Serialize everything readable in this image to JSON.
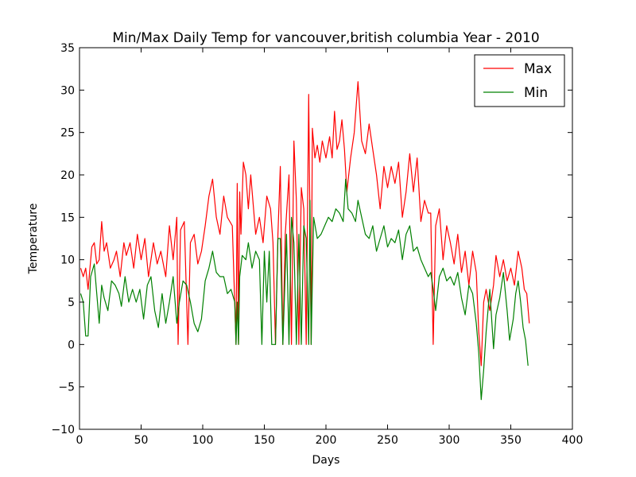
{
  "chart_data": {
    "type": "line",
    "title": "Min/Max Daily Temp for vancouver,british columbia Year - 2010",
    "xlabel": "Days",
    "ylabel": "Temperature",
    "xlim": [
      0,
      400
    ],
    "ylim": [
      -10,
      35
    ],
    "xticks": [
      0,
      50,
      100,
      150,
      200,
      250,
      300,
      350,
      400
    ],
    "yticks": [
      -10,
      -5,
      0,
      5,
      10,
      15,
      20,
      25,
      30,
      35
    ],
    "grid": false,
    "legend_position": "top-right",
    "series": [
      {
        "name": "Max",
        "color": "#ff0000",
        "points": [
          [
            1,
            9
          ],
          [
            3,
            8
          ],
          [
            5,
            9
          ],
          [
            7,
            6.5
          ],
          [
            10,
            11.5
          ],
          [
            12,
            12
          ],
          [
            14,
            9.5
          ],
          [
            16,
            10
          ],
          [
            18,
            14.5
          ],
          [
            20,
            11
          ],
          [
            22,
            12
          ],
          [
            25,
            9
          ],
          [
            28,
            10
          ],
          [
            30,
            11
          ],
          [
            33,
            8
          ],
          [
            36,
            12
          ],
          [
            38,
            10.5
          ],
          [
            41,
            12
          ],
          [
            44,
            9
          ],
          [
            47,
            13
          ],
          [
            50,
            10
          ],
          [
            53,
            12.5
          ],
          [
            56,
            8
          ],
          [
            60,
            12
          ],
          [
            63,
            9.5
          ],
          [
            66,
            11
          ],
          [
            70,
            8
          ],
          [
            73,
            14
          ],
          [
            76,
            10
          ],
          [
            79,
            15
          ],
          [
            80,
            0
          ],
          [
            82,
            13.5
          ],
          [
            85,
            14.5
          ],
          [
            88,
            0
          ],
          [
            90,
            12
          ],
          [
            93,
            13
          ],
          [
            96,
            9.5
          ],
          [
            99,
            11
          ],
          [
            102,
            14
          ],
          [
            105,
            17.5
          ],
          [
            108,
            19.5
          ],
          [
            111,
            15
          ],
          [
            114,
            13
          ],
          [
            117,
            17.5
          ],
          [
            120,
            15
          ],
          [
            124,
            14
          ],
          [
            127,
            0
          ],
          [
            128,
            19
          ],
          [
            129,
            0
          ],
          [
            130,
            18
          ],
          [
            131,
            13
          ],
          [
            133,
            21.5
          ],
          [
            135,
            20
          ],
          [
            137,
            16
          ],
          [
            139,
            20
          ],
          [
            141,
            16.5
          ],
          [
            143,
            13
          ],
          [
            146,
            15
          ],
          [
            149,
            12
          ],
          [
            152,
            17.5
          ],
          [
            155,
            16
          ],
          [
            157,
            12
          ],
          [
            159,
            0
          ],
          [
            161,
            13
          ],
          [
            163,
            21
          ],
          [
            165,
            0
          ],
          [
            167,
            13
          ],
          [
            170,
            20
          ],
          [
            172,
            0
          ],
          [
            174,
            24
          ],
          [
            176,
            17
          ],
          [
            178,
            0
          ],
          [
            180,
            18.5
          ],
          [
            182,
            16
          ],
          [
            184,
            0
          ],
          [
            186,
            29.5
          ],
          [
            188,
            0
          ],
          [
            189,
            25.5
          ],
          [
            191,
            22
          ],
          [
            193,
            23.5
          ],
          [
            195,
            21.5
          ],
          [
            197,
            24
          ],
          [
            200,
            22
          ],
          [
            203,
            24.5
          ],
          [
            205,
            22
          ],
          [
            207,
            27.5
          ],
          [
            209,
            23
          ],
          [
            211,
            24
          ],
          [
            213,
            26.5
          ],
          [
            215,
            23
          ],
          [
            217,
            18
          ],
          [
            220,
            22
          ],
          [
            223,
            25
          ],
          [
            226,
            31
          ],
          [
            229,
            24
          ],
          [
            232,
            22.5
          ],
          [
            235,
            26
          ],
          [
            238,
            23
          ],
          [
            241,
            20
          ],
          [
            244,
            16
          ],
          [
            247,
            21
          ],
          [
            250,
            18.5
          ],
          [
            253,
            21
          ],
          [
            256,
            19
          ],
          [
            259,
            21.5
          ],
          [
            262,
            15
          ],
          [
            265,
            18
          ],
          [
            268,
            22.5
          ],
          [
            271,
            18
          ],
          [
            274,
            22
          ],
          [
            277,
            14.5
          ],
          [
            280,
            17
          ],
          [
            283,
            15.5
          ],
          [
            285,
            15.5
          ],
          [
            287,
            0
          ],
          [
            289,
            14
          ],
          [
            292,
            16
          ],
          [
            295,
            10
          ],
          [
            298,
            14
          ],
          [
            301,
            12
          ],
          [
            304,
            9.5
          ],
          [
            307,
            13
          ],
          [
            310,
            8.5
          ],
          [
            313,
            11
          ],
          [
            316,
            7
          ],
          [
            319,
            11
          ],
          [
            322,
            8.5
          ],
          [
            324,
            1.5
          ],
          [
            326,
            -2.5
          ],
          [
            328,
            5
          ],
          [
            330,
            6.5
          ],
          [
            333,
            4
          ],
          [
            336,
            7
          ],
          [
            338,
            10.5
          ],
          [
            341,
            8
          ],
          [
            344,
            10
          ],
          [
            347,
            7.5
          ],
          [
            350,
            9
          ],
          [
            353,
            7
          ],
          [
            356,
            11
          ],
          [
            359,
            9
          ],
          [
            361,
            6.5
          ],
          [
            363,
            6
          ],
          [
            365,
            2.5
          ]
        ]
      },
      {
        "name": "Min",
        "color": "#008000",
        "points": [
          [
            1,
            6
          ],
          [
            3,
            5
          ],
          [
            5,
            1
          ],
          [
            7,
            1
          ],
          [
            9,
            8
          ],
          [
            12,
            9.5
          ],
          [
            14,
            6
          ],
          [
            16,
            2.5
          ],
          [
            18,
            7
          ],
          [
            20,
            5.5
          ],
          [
            23,
            4
          ],
          [
            26,
            7.5
          ],
          [
            29,
            7
          ],
          [
            32,
            6
          ],
          [
            34,
            4.5
          ],
          [
            37,
            8
          ],
          [
            40,
            5
          ],
          [
            43,
            6.5
          ],
          [
            46,
            5
          ],
          [
            49,
            6.5
          ],
          [
            52,
            3
          ],
          [
            55,
            7
          ],
          [
            58,
            8
          ],
          [
            61,
            4
          ],
          [
            64,
            2
          ],
          [
            67,
            6
          ],
          [
            70,
            2.5
          ],
          [
            73,
            5
          ],
          [
            76,
            8
          ],
          [
            79,
            2.5
          ],
          [
            81,
            5
          ],
          [
            84,
            7.5
          ],
          [
            87,
            7
          ],
          [
            90,
            5
          ],
          [
            93,
            2.5
          ],
          [
            96,
            1.5
          ],
          [
            99,
            3
          ],
          [
            102,
            7.5
          ],
          [
            105,
            9
          ],
          [
            108,
            11
          ],
          [
            111,
            8.5
          ],
          [
            114,
            8
          ],
          [
            117,
            8
          ],
          [
            120,
            6
          ],
          [
            123,
            6.5
          ],
          [
            126,
            5
          ],
          [
            127,
            0
          ],
          [
            128,
            5
          ],
          [
            129,
            0
          ],
          [
            130,
            8
          ],
          [
            132,
            10.5
          ],
          [
            135,
            10
          ],
          [
            137,
            12
          ],
          [
            140,
            9
          ],
          [
            143,
            11
          ],
          [
            146,
            10
          ],
          [
            148,
            0
          ],
          [
            150,
            11
          ],
          [
            152,
            5
          ],
          [
            154,
            11
          ],
          [
            156,
            0
          ],
          [
            159,
            0
          ],
          [
            161,
            12.5
          ],
          [
            163,
            12.5
          ],
          [
            165,
            0
          ],
          [
            168,
            13
          ],
          [
            170,
            0
          ],
          [
            172,
            15
          ],
          [
            174,
            12
          ],
          [
            176,
            0
          ],
          [
            178,
            13
          ],
          [
            180,
            0
          ],
          [
            182,
            14
          ],
          [
            184,
            12.5
          ],
          [
            186,
            0
          ],
          [
            187,
            17
          ],
          [
            188,
            0
          ],
          [
            190,
            15
          ],
          [
            193,
            12.5
          ],
          [
            196,
            13
          ],
          [
            199,
            14
          ],
          [
            202,
            15
          ],
          [
            205,
            14.5
          ],
          [
            208,
            16
          ],
          [
            211,
            15.5
          ],
          [
            214,
            14.5
          ],
          [
            216,
            19.5
          ],
          [
            218,
            16
          ],
          [
            221,
            15.5
          ],
          [
            224,
            14.5
          ],
          [
            226,
            17
          ],
          [
            229,
            15
          ],
          [
            232,
            13
          ],
          [
            235,
            12.5
          ],
          [
            238,
            14
          ],
          [
            241,
            11
          ],
          [
            244,
            12.5
          ],
          [
            247,
            14
          ],
          [
            250,
            11.5
          ],
          [
            253,
            12.5
          ],
          [
            256,
            12
          ],
          [
            259,
            13.5
          ],
          [
            262,
            10
          ],
          [
            265,
            13
          ],
          [
            268,
            14
          ],
          [
            271,
            11
          ],
          [
            274,
            11.5
          ],
          [
            277,
            10
          ],
          [
            280,
            9
          ],
          [
            283,
            8
          ],
          [
            285,
            8.5
          ],
          [
            287,
            6.5
          ],
          [
            289,
            4
          ],
          [
            292,
            8
          ],
          [
            295,
            9
          ],
          [
            298,
            7.5
          ],
          [
            301,
            8
          ],
          [
            304,
            7
          ],
          [
            307,
            8.5
          ],
          [
            310,
            5.5
          ],
          [
            313,
            3.5
          ],
          [
            316,
            7
          ],
          [
            319,
            6
          ],
          [
            322,
            2.5
          ],
          [
            324,
            -1
          ],
          [
            326,
            -6.5
          ],
          [
            328,
            -3
          ],
          [
            330,
            1.5
          ],
          [
            333,
            6.5
          ],
          [
            336,
            -0.5
          ],
          [
            338,
            3.5
          ],
          [
            341,
            5.5
          ],
          [
            344,
            8.5
          ],
          [
            347,
            4
          ],
          [
            349,
            0.5
          ],
          [
            352,
            3
          ],
          [
            354,
            6
          ],
          [
            356,
            7.5
          ],
          [
            358,
            5
          ],
          [
            360,
            2
          ],
          [
            362,
            0.5
          ],
          [
            364,
            -2.5
          ]
        ]
      }
    ]
  }
}
